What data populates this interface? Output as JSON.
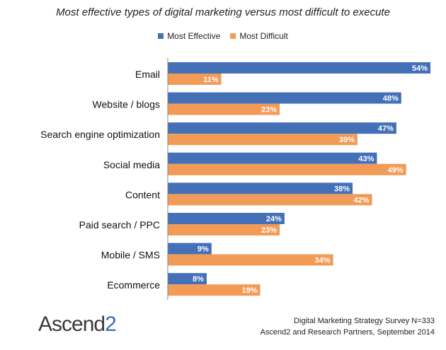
{
  "chart_data": {
    "type": "bar",
    "orientation": "horizontal",
    "title": "Most effective types of digital marketing versus most difficult to execute",
    "categories": [
      "Email",
      "Website / blogs",
      "Search engine optimization",
      "Social media",
      "Content",
      "Paid search / PPC",
      "Mobile / SMS",
      "Ecommerce"
    ],
    "series": [
      {
        "name": "Most Effective",
        "color": "#4470b8",
        "values": [
          54,
          48,
          47,
          43,
          38,
          24,
          9,
          8
        ]
      },
      {
        "name": "Most Difficult",
        "color": "#f29b56",
        "values": [
          11,
          23,
          39,
          49,
          42,
          23,
          34,
          19
        ]
      }
    ],
    "value_suffix": "%",
    "xlim": [
      0,
      54
    ],
    "grid": false,
    "legend_position": "top"
  },
  "footer": {
    "logo_text": "Ascend",
    "logo_suffix": "2",
    "source_line1": "Digital Marketing Strategy Survey N=333",
    "source_line2": "Ascend2 and Research Partners, September 2014"
  }
}
